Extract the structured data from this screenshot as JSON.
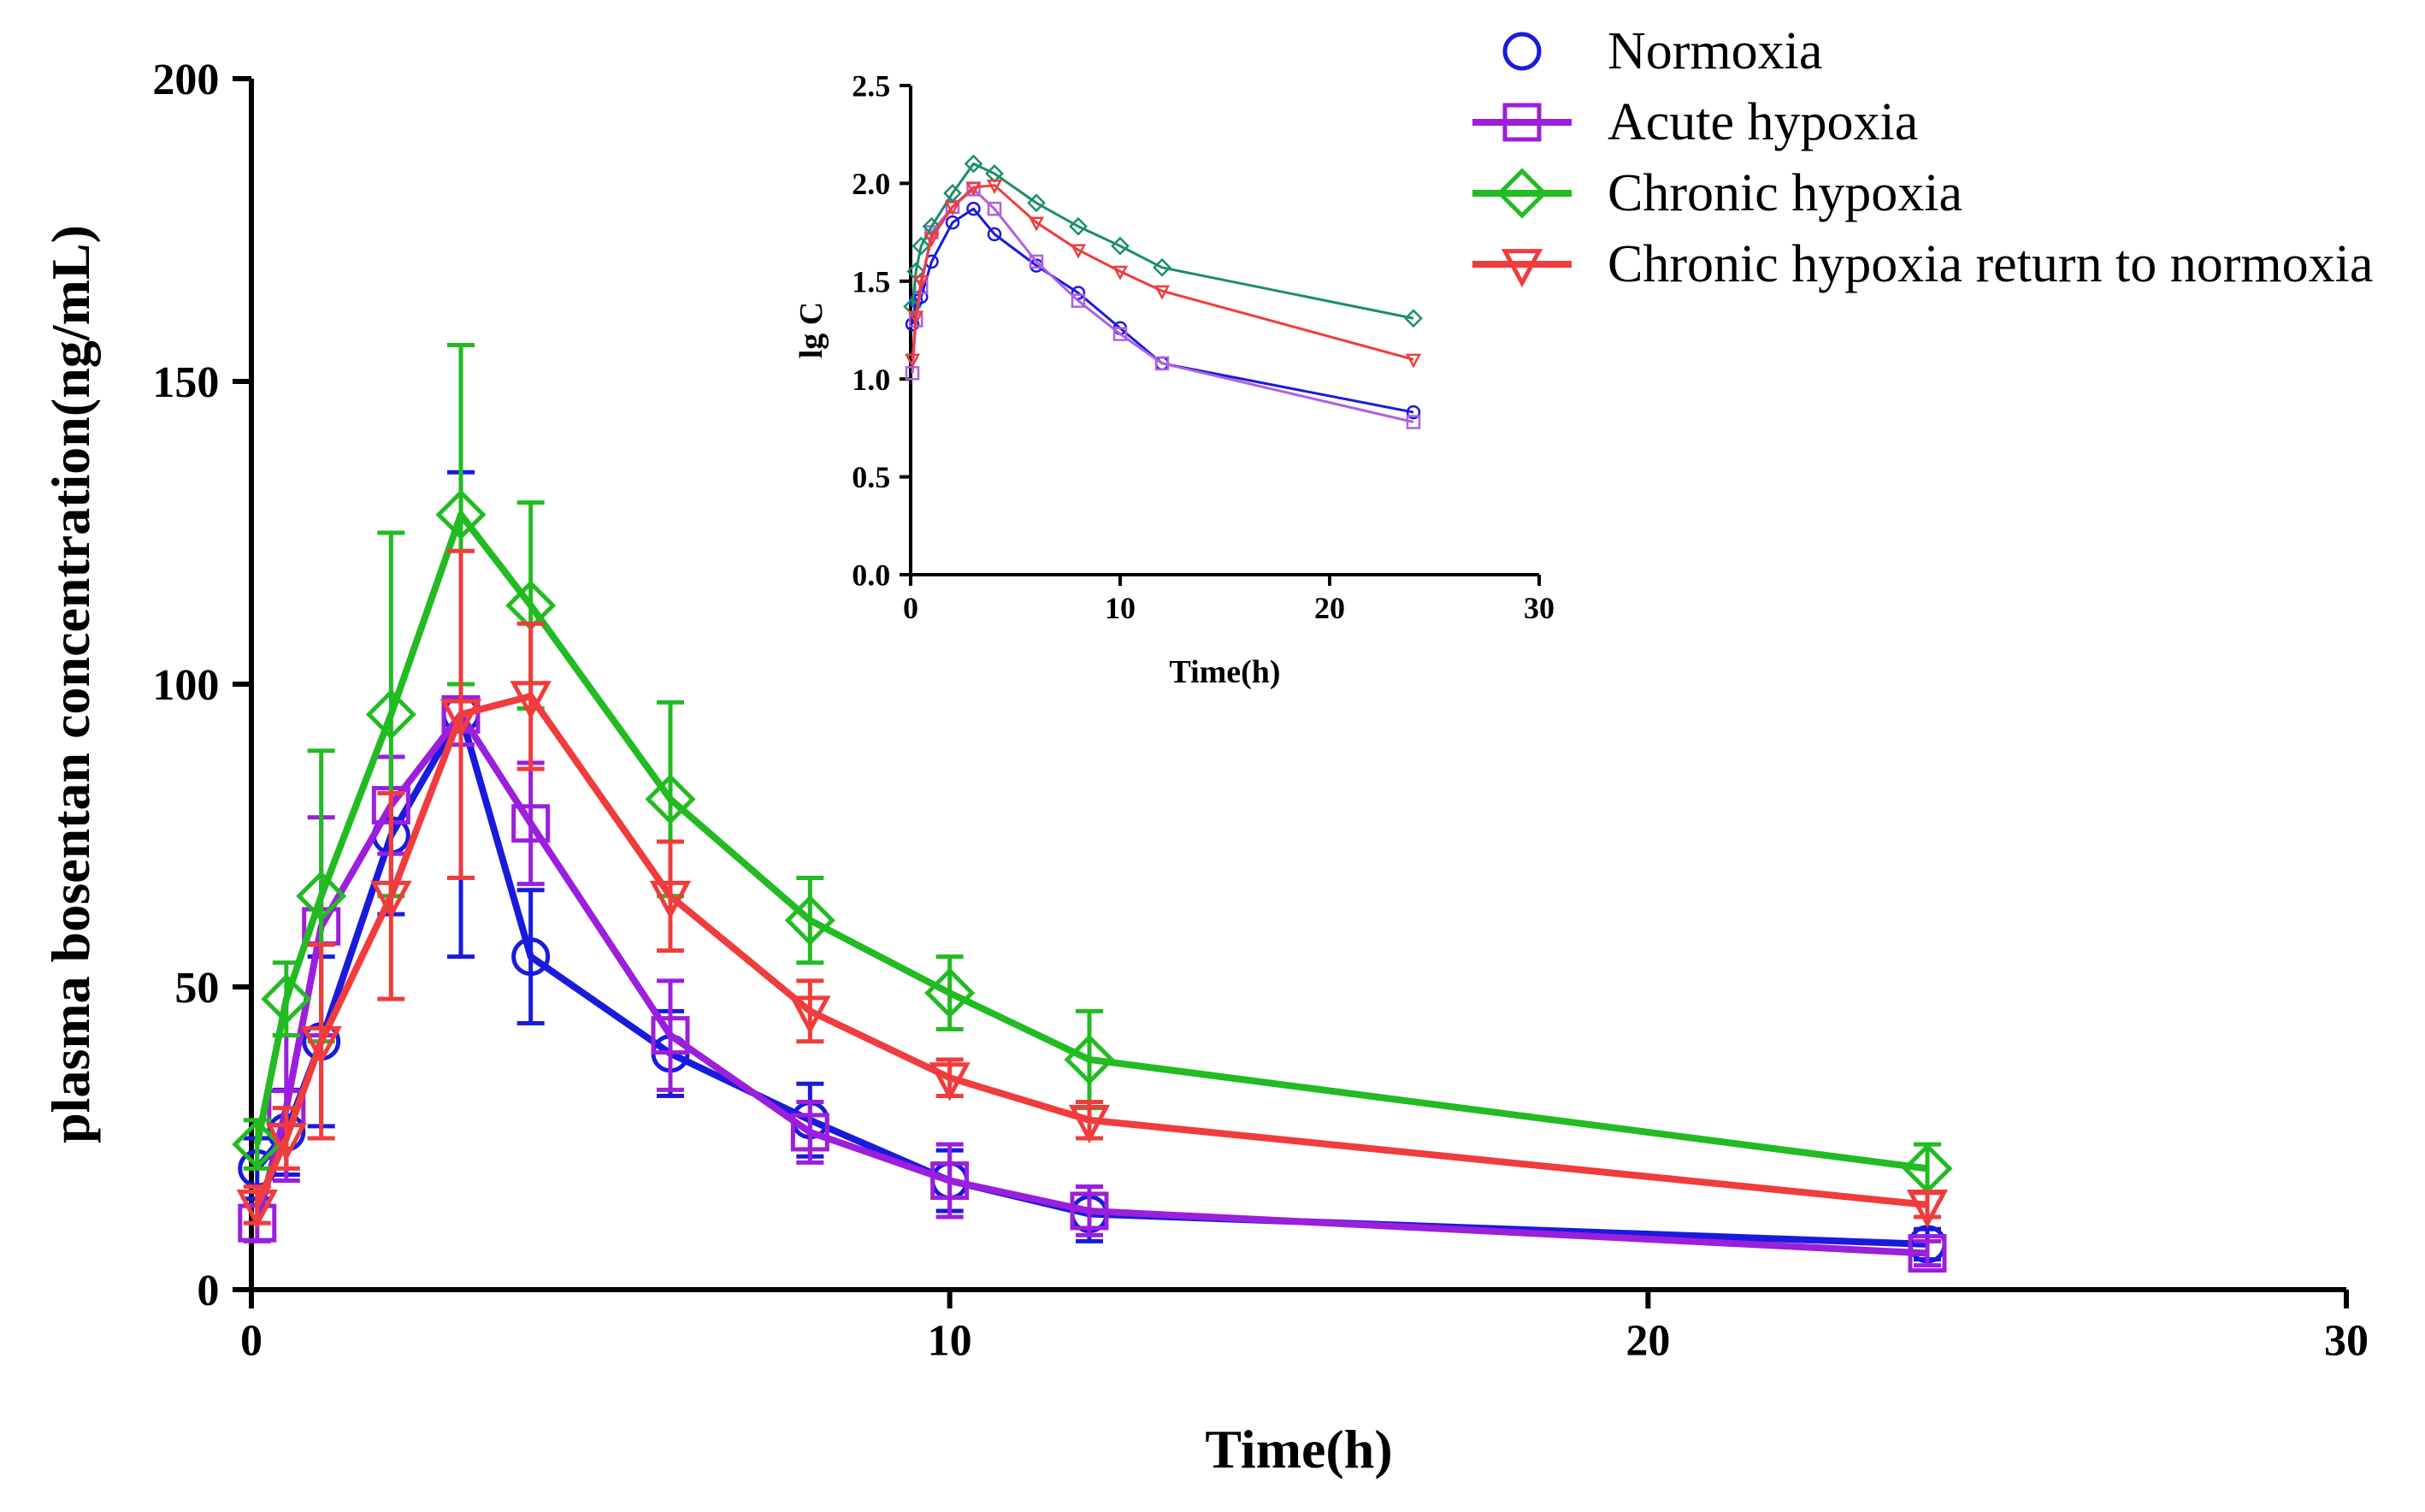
{
  "chart_data": [
    {
      "id": "main",
      "type": "line",
      "xlabel": "Time(h)",
      "ylabel": "plasma bosentan concentration(ng/mL)",
      "xlim": [
        0,
        30
      ],
      "ylim": [
        0,
        200
      ],
      "xticks": [
        0,
        10,
        20,
        30
      ],
      "yticks": [
        0,
        50,
        100,
        150,
        200
      ],
      "xtick_labels": [
        "0",
        "10",
        "20",
        "30"
      ],
      "ytick_labels": [
        "0",
        "50",
        "100",
        "150",
        "200"
      ],
      "grid": false,
      "legend_position": "top-right",
      "series": [
        {
          "name": "Normoxia",
          "color": "#1a1adc",
          "marker": "circle",
          "x": [
            0.083,
            0.5,
            1,
            2,
            3,
            4,
            6,
            8,
            10,
            12,
            24
          ],
          "y": [
            20,
            26,
            41,
            75,
            95,
            55,
            39,
            28,
            18,
            12.5,
            7.5
          ],
          "err": [
            5,
            7,
            14,
            13,
            40,
            11,
            7,
            6,
            5,
            4.5,
            2.5
          ]
        },
        {
          "name": "Acute hypoxia",
          "color": "#9b1fdc",
          "marker": "square",
          "x": [
            0.083,
            0.5,
            1,
            2,
            3,
            4,
            6,
            8,
            10,
            12,
            24
          ],
          "y": [
            11,
            30,
            60,
            80,
            95,
            77,
            42,
            26,
            18,
            13,
            6
          ],
          "err": [
            3,
            12,
            18,
            8,
            5,
            10,
            9,
            5,
            6,
            4,
            2
          ]
        },
        {
          "name": "Chronic hypoxia",
          "color": "#22bb22",
          "marker": "diamond",
          "x": [
            0.083,
            0.5,
            1,
            2,
            3,
            4,
            6,
            8,
            10,
            12,
            24
          ],
          "y": [
            24,
            48,
            65,
            95,
            128,
            113,
            81,
            61,
            49,
            38,
            20
          ],
          "err": [
            4,
            6,
            24,
            30,
            28,
            17,
            16,
            7,
            6,
            8,
            4
          ]
        },
        {
          "name": "Chronic hypoxia return to normoxia",
          "color": "#f03c3c",
          "marker": "triangle-down",
          "x": [
            0.083,
            0.5,
            1,
            2,
            3,
            4,
            6,
            8,
            10,
            12,
            24
          ],
          "y": [
            14,
            25,
            41,
            65,
            95,
            98,
            65,
            46,
            35,
            28,
            14
          ],
          "err": [
            3,
            5,
            16,
            17,
            27,
            12,
            9,
            5,
            3,
            3,
            2
          ]
        }
      ]
    },
    {
      "id": "inset",
      "type": "line",
      "xlabel": "Time(h)",
      "ylabel": "lg C",
      "xlim": [
        0,
        30
      ],
      "ylim": [
        0,
        2.5
      ],
      "xticks": [
        0,
        10,
        20,
        30
      ],
      "yticks": [
        0,
        0.5,
        1.0,
        1.5,
        2.0,
        2.5
      ],
      "xtick_labels": [
        "0",
        "10",
        "20",
        "30"
      ],
      "ytick_labels": [
        "0.0",
        "0.5",
        "1.0",
        "1.5",
        "2.0",
        "2.5"
      ],
      "grid": false,
      "series": [
        {
          "name": "Normoxia",
          "color": "#1a1adc",
          "marker": "circle",
          "x": [
            0.083,
            0.25,
            0.5,
            1,
            2,
            3,
            4,
            6,
            8,
            10,
            12,
            24
          ],
          "y": [
            1.28,
            1.4,
            1.42,
            1.6,
            1.8,
            1.87,
            1.74,
            1.58,
            1.44,
            1.26,
            1.08,
            0.83
          ]
        },
        {
          "name": "Acute hypoxia",
          "color": "#b060e0",
          "marker": "square",
          "x": [
            0.083,
            0.25,
            0.5,
            1,
            2,
            3,
            4,
            6,
            8,
            10,
            12,
            24
          ],
          "y": [
            1.03,
            1.3,
            1.47,
            1.75,
            1.88,
            1.97,
            1.87,
            1.6,
            1.4,
            1.23,
            1.08,
            0.78
          ]
        },
        {
          "name": "Chronic hypoxia",
          "color": "#1a8f66",
          "marker": "diamond",
          "x": [
            0.083,
            0.25,
            0.5,
            1,
            2,
            3,
            4,
            6,
            8,
            10,
            12,
            24
          ],
          "y": [
            1.37,
            1.55,
            1.68,
            1.78,
            1.95,
            2.1,
            2.05,
            1.9,
            1.78,
            1.68,
            1.57,
            1.31
          ]
        },
        {
          "name": "Chronic hypoxia return to normoxia",
          "color": "#f03c3c",
          "marker": "triangle-down",
          "x": [
            0.083,
            0.25,
            0.5,
            1,
            2,
            3,
            4,
            6,
            8,
            10,
            12,
            24
          ],
          "y": [
            1.1,
            1.32,
            1.5,
            1.72,
            1.88,
            1.98,
            1.99,
            1.8,
            1.66,
            1.55,
            1.45,
            1.1
          ]
        }
      ]
    }
  ]
}
